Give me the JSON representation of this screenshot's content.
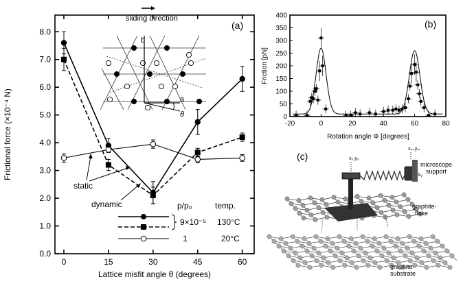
{
  "chart_data": [
    {
      "panel": "(a)",
      "type": "line",
      "xlabel": "Lattice misfit angle θ  (degrees)",
      "ylabel": "Frictional force  (×10⁻⁴ N)",
      "xlim": [
        -3,
        64
      ],
      "ylim": [
        0,
        8.6
      ],
      "xticks": [
        "0",
        "15",
        "30",
        "45",
        "60"
      ],
      "xtick_values": [
        0,
        15,
        30,
        45,
        60
      ],
      "yticks": [
        "0.0",
        "1.0",
        "2.0",
        "3.0",
        "4.0",
        "5.0",
        "6.0",
        "7.0",
        "8.0"
      ],
      "ytick_values": [
        0,
        1,
        2,
        3,
        4,
        5,
        6,
        7,
        8
      ],
      "series": [
        {
          "x": [
            0,
            15,
            30,
            45,
            60
          ],
          "y": [
            7.6,
            3.9,
            2.2,
            4.75,
            6.3
          ],
          "yerr": [
            0.4,
            0.25,
            0.4,
            0.45,
            0.45
          ],
          "marker": "filled-circle",
          "line": "solid"
        },
        {
          "x": [
            0,
            15,
            30,
            45,
            60
          ],
          "y": [
            7.0,
            3.2,
            2.1,
            3.65,
            4.2
          ],
          "yerr": [
            0.4,
            0.2,
            0.3,
            0.15,
            0.15
          ],
          "marker": "filled-square",
          "line": "dashed"
        },
        {
          "x": [
            0,
            15,
            30,
            45,
            60
          ],
          "y": [
            3.45,
            3.75,
            3.95,
            3.4,
            3.45
          ],
          "yerr": [
            0.15,
            0.1,
            0.15,
            0.12,
            0.12
          ],
          "marker": "open-circle",
          "line": "solid"
        }
      ],
      "annotations": {
        "static": "static",
        "dynamic": "dynamic",
        "sliding": "sliding direction",
        "axis_a": "a",
        "axis_b": "b",
        "theta": "θ"
      },
      "legend": {
        "header_ratio": "p/p₀",
        "header_temp": "temp.",
        "ratio1": "9×10⁻⁵",
        "temp1": "130°C",
        "ratio2": "1",
        "temp2": "20°C"
      }
    },
    {
      "panel": "(b)",
      "type": "scatter",
      "xlabel": "Rotation angle Φ [degrees]",
      "ylabel": "Friction [pN]",
      "xlim": [
        -20,
        80
      ],
      "ylim": [
        0,
        400
      ],
      "xticks": [
        "-20",
        "0",
        "20",
        "40",
        "60",
        "80"
      ],
      "xtick_values": [
        -20,
        0,
        20,
        40,
        60,
        80
      ],
      "yticks": [
        "0",
        "50",
        "100",
        "150",
        "200",
        "250",
        "300",
        "350",
        "400"
      ],
      "ytick_values": [
        0,
        50,
        100,
        150,
        200,
        250,
        300,
        350,
        400
      ],
      "points": [
        {
          "x": -16,
          "y": 5
        },
        {
          "x": -9,
          "y": 5
        },
        {
          "x": -7,
          "y": 60
        },
        {
          "x": -6,
          "y": 75
        },
        {
          "x": -5,
          "y": 70
        },
        {
          "x": -4,
          "y": 100
        },
        {
          "x": -3,
          "y": 110
        },
        {
          "x": -2,
          "y": 65
        },
        {
          "x": -1,
          "y": 180
        },
        {
          "x": 0,
          "y": 310
        },
        {
          "x": 1,
          "y": 200
        },
        {
          "x": 3,
          "y": 30
        },
        {
          "x": 16,
          "y": 5
        },
        {
          "x": 19,
          "y": 5
        },
        {
          "x": 22,
          "y": 15
        },
        {
          "x": 25,
          "y": 10
        },
        {
          "x": 31,
          "y": 15
        },
        {
          "x": 35,
          "y": 10
        },
        {
          "x": 40,
          "y": 20
        },
        {
          "x": 43,
          "y": 25
        },
        {
          "x": 46,
          "y": 25
        },
        {
          "x": 48,
          "y": 30
        },
        {
          "x": 50,
          "y": 25
        },
        {
          "x": 52,
          "y": 30
        },
        {
          "x": 54,
          "y": 35
        },
        {
          "x": 56,
          "y": 70
        },
        {
          "x": 57,
          "y": 120
        },
        {
          "x": 58,
          "y": 170
        },
        {
          "x": 60,
          "y": 205
        },
        {
          "x": 61,
          "y": 175
        },
        {
          "x": 62,
          "y": 125
        },
        {
          "x": 63,
          "y": 90
        },
        {
          "x": 64,
          "y": 60
        },
        {
          "x": 66,
          "y": 35
        },
        {
          "x": 69,
          "y": 5
        },
        {
          "x": 73,
          "y": 10
        }
      ],
      "fit": {
        "baseline": 10,
        "peaks": [
          {
            "center": 0,
            "amplitude": 260,
            "width": 3.2
          },
          {
            "center": 60,
            "amplitude": 250,
            "width": 3.4
          }
        ]
      }
    }
  ],
  "diagram_c": {
    "panel": "(c)",
    "label_xy": "x₀,y₀",
    "label_xm": "xₘ,yₘ",
    "label_ky": "kᵧ",
    "label_microscope": "microscope",
    "label_support": "support",
    "label_flake_1": "graphite-",
    "label_flake_2": "flake",
    "label_substrate_1": "graphite-",
    "label_substrate_2": "substrate"
  }
}
